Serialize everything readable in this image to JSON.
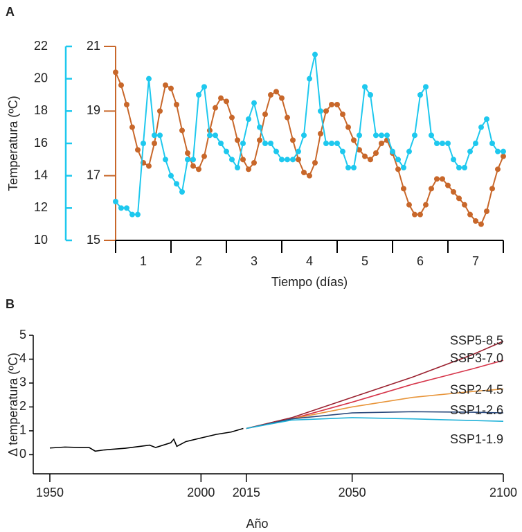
{
  "chart_data": [
    {
      "type": "scatter",
      "title": "A",
      "xlabel": "Tiempo (días)",
      "ylabel": "Temperatura (ºC)",
      "categories": [
        "1",
        "2",
        "3",
        "4",
        "5",
        "6",
        "7"
      ],
      "xlim": [
        0,
        7
      ],
      "ylim": [
        10,
        22
      ],
      "yticks": [
        10,
        12,
        14,
        16,
        18,
        20,
        22
      ],
      "y_color": "#1ec8ee",
      "y2lim": [
        15,
        21
      ],
      "y2ticks": [
        15,
        17,
        19,
        21
      ],
      "y2_color": "#c8672a",
      "series": [
        {
          "color": "#c8672a",
          "axis": "y2",
          "x": [
            0,
            0.1,
            0.2,
            0.3,
            0.4,
            0.5,
            0.6,
            0.7,
            0.8,
            0.9,
            1,
            1.1,
            1.2,
            1.3,
            1.4,
            1.5,
            1.6,
            1.7,
            1.8,
            1.9,
            2,
            2.1,
            2.2,
            2.3,
            2.4,
            2.5,
            2.6,
            2.7,
            2.8,
            2.9,
            3,
            3.1,
            3.2,
            3.3,
            3.4,
            3.5,
            3.6,
            3.7,
            3.8,
            3.9,
            4,
            4.1,
            4.2,
            4.3,
            4.4,
            4.5,
            4.6,
            4.7,
            4.8,
            4.9,
            5,
            5.1,
            5.2,
            5.3,
            5.4,
            5.5,
            5.6,
            5.7,
            5.8,
            5.9,
            6,
            6.1,
            6.2,
            6.3,
            6.4,
            6.5,
            6.6,
            6.7,
            6.8,
            6.9,
            7
          ],
          "values": [
            20.2,
            19.8,
            19.2,
            18.5,
            17.8,
            17.4,
            17.3,
            18.0,
            19.0,
            19.8,
            19.7,
            19.2,
            18.4,
            17.7,
            17.3,
            17.2,
            17.6,
            18.4,
            19.1,
            19.4,
            19.3,
            18.8,
            18.1,
            17.5,
            17.2,
            17.4,
            18.1,
            18.9,
            19.5,
            19.6,
            19.4,
            18.8,
            18.1,
            17.5,
            17.1,
            17.0,
            17.4,
            18.3,
            19.0,
            19.2,
            19.2,
            18.9,
            18.5,
            18.1,
            17.8,
            17.6,
            17.5,
            17.7,
            18.0,
            18.1,
            17.7,
            17.2,
            16.6,
            16.1,
            15.8,
            15.8,
            16.1,
            16.6,
            16.9,
            16.9,
            16.7,
            16.5,
            16.3,
            16.1,
            15.8,
            15.6,
            15.5,
            15.9,
            16.6,
            17.2,
            17.6
          ]
        },
        {
          "color": "#1ec8ee",
          "axis": "y",
          "x": [
            0,
            0.1,
            0.2,
            0.3,
            0.4,
            0.5,
            0.6,
            0.7,
            0.8,
            0.9,
            1,
            1.1,
            1.2,
            1.3,
            1.4,
            1.5,
            1.6,
            1.7,
            1.8,
            1.9,
            2,
            2.1,
            2.2,
            2.3,
            2.4,
            2.5,
            2.6,
            2.7,
            2.8,
            2.9,
            3,
            3.1,
            3.2,
            3.3,
            3.4,
            3.5,
            3.6,
            3.7,
            3.8,
            3.9,
            4,
            4.1,
            4.2,
            4.3,
            4.4,
            4.5,
            4.6,
            4.7,
            4.8,
            4.9,
            5,
            5.1,
            5.2,
            5.3,
            5.4,
            5.5,
            5.6,
            5.7,
            5.8,
            5.9,
            6,
            6.1,
            6.2,
            6.3,
            6.4,
            6.5,
            6.6,
            6.7,
            6.8,
            6.9,
            7
          ],
          "values": [
            12.4,
            12.0,
            12.0,
            11.6,
            11.6,
            16.0,
            20.0,
            16.5,
            16.5,
            15.0,
            14.0,
            13.5,
            13.0,
            15.0,
            15.0,
            19.0,
            19.5,
            16.5,
            16.5,
            16.0,
            15.5,
            15.0,
            14.5,
            16.0,
            17.5,
            18.5,
            17.0,
            16.0,
            16.0,
            15.5,
            15.0,
            15.0,
            15.0,
            15.5,
            16.5,
            20.0,
            21.5,
            18.0,
            16.0,
            16.0,
            16.0,
            15.5,
            14.5,
            14.5,
            16.5,
            19.5,
            19.0,
            16.5,
            16.5,
            16.5,
            15.5,
            15.0,
            14.5,
            15.5,
            16.5,
            19.0,
            19.5,
            16.5,
            16.0,
            16.0,
            16.0,
            15.0,
            14.5,
            14.5,
            15.5,
            16.0,
            17.0,
            17.5,
            16.0,
            15.5,
            15.5
          ]
        }
      ]
    },
    {
      "type": "line",
      "title": "B",
      "xlabel": "Año",
      "ylabel": "Δ temperatura (ºC)",
      "xlim": [
        1950,
        2100
      ],
      "xticks": [
        1950,
        2000,
        2015,
        2050,
        2100
      ],
      "ylim": [
        -0.8,
        5
      ],
      "yticks": [
        0,
        1,
        2,
        3,
        4,
        5
      ],
      "series": [
        {
          "color": "#000000",
          "x": [
            1950,
            1955,
            1960,
            1963,
            1965,
            1968,
            1970,
            1975,
            1980,
            1983,
            1985,
            1990,
            1991,
            1992,
            1995,
            2000,
            2005,
            2010,
            2014
          ],
          "values": [
            0.28,
            0.32,
            0.3,
            0.3,
            0.15,
            0.2,
            0.22,
            0.27,
            0.35,
            0.4,
            0.3,
            0.5,
            0.65,
            0.35,
            0.55,
            0.7,
            0.85,
            0.95,
            1.1
          ]
        },
        {
          "name": "SSP5-8.5",
          "color": "#9b2230",
          "x": [
            2015,
            2030,
            2050,
            2070,
            2090,
            2100
          ],
          "values": [
            1.1,
            1.55,
            2.4,
            3.25,
            4.2,
            4.75
          ]
        },
        {
          "name": "SSP3-7.0",
          "color": "#d6354a",
          "x": [
            2015,
            2030,
            2050,
            2070,
            2090,
            2100
          ],
          "values": [
            1.1,
            1.5,
            2.2,
            2.95,
            3.6,
            3.95
          ]
        },
        {
          "name": "SSP2-4.5",
          "color": "#e8953a",
          "x": [
            2015,
            2030,
            2050,
            2070,
            2090,
            2100
          ],
          "values": [
            1.1,
            1.5,
            2.0,
            2.4,
            2.65,
            2.75
          ]
        },
        {
          "name": "SSP1-2.6",
          "color": "#2b4a7d",
          "x": [
            2015,
            2030,
            2050,
            2070,
            2090,
            2100
          ],
          "values": [
            1.1,
            1.5,
            1.75,
            1.8,
            1.78,
            1.75
          ]
        },
        {
          "name": "SSP1-1.9",
          "color": "#1fb1d8",
          "x": [
            2015,
            2030,
            2050,
            2070,
            2090,
            2100
          ],
          "values": [
            1.1,
            1.45,
            1.55,
            1.5,
            1.43,
            1.4
          ]
        }
      ]
    }
  ]
}
